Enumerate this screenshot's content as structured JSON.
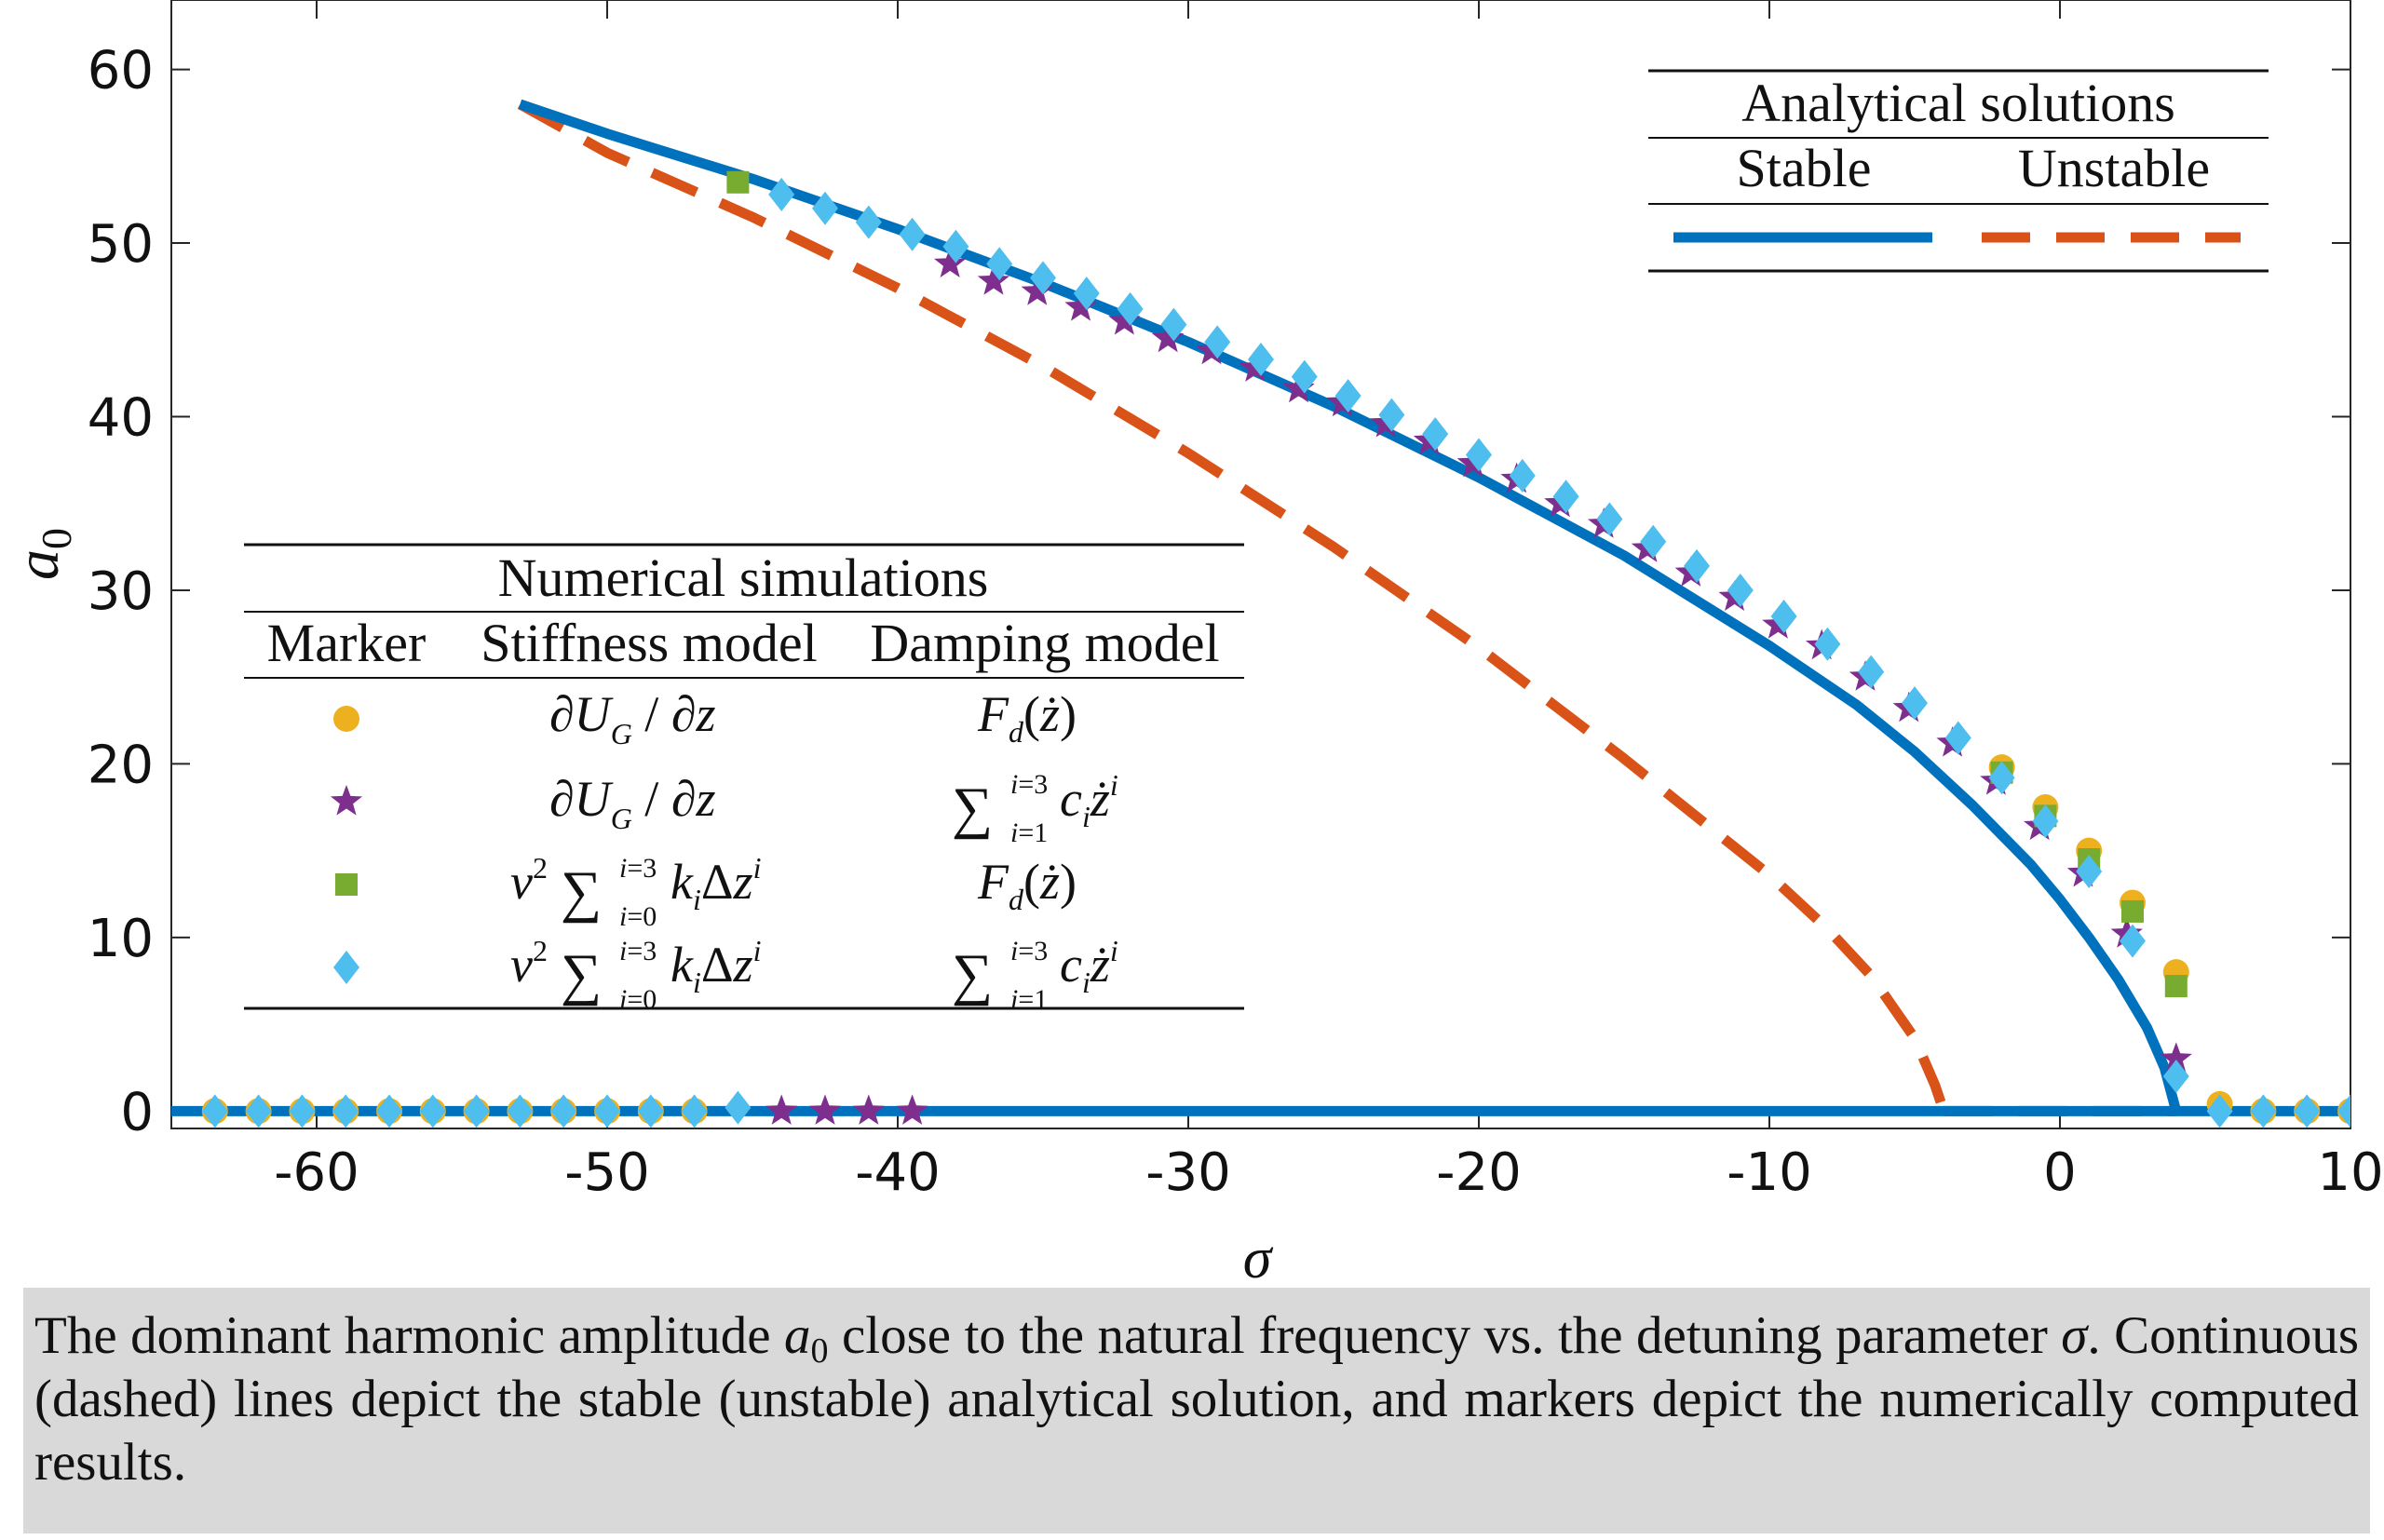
{
  "chart_data": {
    "type": "line",
    "xlabel": "σ",
    "ylabel": "a",
    "ylabel_sub": "0",
    "xlim": [
      -65,
      10
    ],
    "ylim": [
      -1,
      64
    ],
    "x_ticks": [
      -60,
      -50,
      -40,
      -30,
      -20,
      -10,
      0,
      10
    ],
    "y_ticks": [
      0,
      10,
      20,
      30,
      40,
      50,
      60
    ],
    "x_tick_labels": [
      "-60",
      "-50",
      "-40",
      "-30",
      "-20",
      "-10",
      "0",
      "10"
    ],
    "y_tick_labels": [
      "0",
      "10",
      "20",
      "30",
      "40",
      "50",
      "60"
    ],
    "grid": false,
    "series": [
      {
        "name": "Stable",
        "style": "solid",
        "color": "#0072bd",
        "segments": [
          [
            [
              -53,
              58
            ],
            [
              -50,
              56.3
            ],
            [
              -45,
              53.7
            ],
            [
              -40,
              50.8
            ],
            [
              -35,
              47.7
            ],
            [
              -30,
              44.3
            ],
            [
              -25,
              40.6
            ],
            [
              -20,
              36.5
            ],
            [
              -15,
              32.0
            ],
            [
              -10,
              26.8
            ],
            [
              -7,
              23.4
            ],
            [
              -5,
              20.7
            ],
            [
              -3,
              17.6
            ],
            [
              -1,
              14.2
            ],
            [
              0,
              12.2
            ],
            [
              1,
              10.0
            ],
            [
              2,
              7.6
            ],
            [
              3,
              4.8
            ],
            [
              3.6,
              2.5
            ],
            [
              4.0,
              0
            ]
          ],
          [
            [
              -65,
              0
            ],
            [
              10,
              0
            ]
          ]
        ]
      },
      {
        "name": "Unstable",
        "style": "dashed",
        "color": "#d95319",
        "segments": [
          [
            [
              -53,
              58
            ],
            [
              -50,
              55.2
            ],
            [
              -45,
              51.5
            ],
            [
              -40,
              47.4
            ],
            [
              -35,
              42.9
            ],
            [
              -30,
              37.9
            ],
            [
              -25,
              32.5
            ],
            [
              -20,
              26.7
            ],
            [
              -15,
              20.3
            ],
            [
              -10,
              13.6
            ],
            [
              -8,
              10.5
            ],
            [
              -6.5,
              7.8
            ],
            [
              -5,
              4.2
            ],
            [
              -4.3,
              1.5
            ],
            [
              -4,
              0
            ]
          ],
          [
            [
              -4,
              0
            ],
            [
              4.0,
              0
            ]
          ]
        ]
      }
    ],
    "marker_series": [
      {
        "marker": "circle",
        "color": "#edb120",
        "stiffness_model": "∂U_G / ∂z",
        "damping_model": "F_d(ż)",
        "points": [
          [
            -2,
            19.8
          ],
          [
            -0.5,
            17.5
          ],
          [
            1,
            15.0
          ],
          [
            2.5,
            12.0
          ],
          [
            4,
            8.0
          ],
          [
            5.5,
            0.4
          ],
          [
            -63.5,
            0
          ],
          [
            -62,
            0
          ],
          [
            -60.5,
            0
          ],
          [
            -59,
            0
          ],
          [
            -57.5,
            0
          ],
          [
            -56,
            0
          ],
          [
            -54.5,
            0
          ],
          [
            -53,
            0
          ],
          [
            -51.5,
            0
          ],
          [
            -50,
            0
          ],
          [
            -48.5,
            0
          ],
          [
            -47,
            0
          ],
          [
            7,
            0
          ],
          [
            8.5,
            0
          ],
          [
            10,
            0
          ]
        ]
      },
      {
        "marker": "star",
        "color": "#7e2f8e",
        "stiffness_model": "∂U_G / ∂z",
        "damping_model": "Σ_{i=1}^{i=3} c_i ż^i",
        "points": [
          [
            -38.2,
            48.8
          ],
          [
            -36.7,
            47.8
          ],
          [
            -35.2,
            47.2
          ],
          [
            -33.7,
            46.3
          ],
          [
            -32.2,
            45.5
          ],
          [
            -30.7,
            44.5
          ],
          [
            -29.2,
            43.8
          ],
          [
            -27.7,
            42.8
          ],
          [
            -26.2,
            41.6
          ],
          [
            -24.7,
            40.8
          ],
          [
            -23.2,
            39.6
          ],
          [
            -21.7,
            38.6
          ],
          [
            -20.2,
            37.3
          ],
          [
            -18.7,
            36.4
          ],
          [
            -17.2,
            35.0
          ],
          [
            -15.7,
            33.8
          ],
          [
            -14.2,
            32.4
          ],
          [
            -12.7,
            31.0
          ],
          [
            -11.2,
            29.6
          ],
          [
            -9.7,
            28.0
          ],
          [
            -8.2,
            26.8
          ],
          [
            -6.7,
            25.0
          ],
          [
            -5.2,
            23.2
          ],
          [
            -3.7,
            21.2
          ],
          [
            -2.2,
            19.0
          ],
          [
            -0.7,
            16.4
          ],
          [
            0.8,
            13.7
          ],
          [
            2.3,
            10.2
          ],
          [
            4.0,
            3.0
          ],
          [
            -44,
            0
          ],
          [
            -42.5,
            0
          ],
          [
            -41,
            0
          ],
          [
            -39.5,
            0
          ]
        ]
      },
      {
        "marker": "square",
        "color": "#77ac30",
        "stiffness_model": "v² Σ_{i=0}^{i=3} k_i Δz^i",
        "damping_model": "F_d(ż)",
        "points": [
          [
            -45.5,
            53.5
          ],
          [
            -2,
            19.5
          ],
          [
            -0.5,
            17.0
          ],
          [
            1,
            14.5
          ],
          [
            2.5,
            11.5
          ],
          [
            4,
            7.2
          ]
        ]
      },
      {
        "marker": "diamond",
        "color": "#4dbeee",
        "stiffness_model": "v² Σ_{i=0}^{i=3} k_i Δz^i",
        "damping_model": "Σ_{i=1}^{i=3} c_i ż^i",
        "points": [
          [
            -44,
            52.8
          ],
          [
            -42.5,
            52.0
          ],
          [
            -41,
            51.2
          ],
          [
            -39.5,
            50.5
          ],
          [
            -38,
            49.8
          ],
          [
            -36.5,
            48.8
          ],
          [
            -35,
            48.0
          ],
          [
            -33.5,
            47.1
          ],
          [
            -32,
            46.2
          ],
          [
            -30.5,
            45.3
          ],
          [
            -29,
            44.3
          ],
          [
            -27.5,
            43.3
          ],
          [
            -26,
            42.3
          ],
          [
            -24.5,
            41.2
          ],
          [
            -23,
            40.1
          ],
          [
            -21.5,
            39.0
          ],
          [
            -20,
            37.8
          ],
          [
            -18.5,
            36.6
          ],
          [
            -17,
            35.4
          ],
          [
            -15.5,
            34.1
          ],
          [
            -14,
            32.8
          ],
          [
            -12.5,
            31.4
          ],
          [
            -11,
            30.0
          ],
          [
            -9.5,
            28.5
          ],
          [
            -8,
            26.9
          ],
          [
            -6.5,
            25.3
          ],
          [
            -5,
            23.5
          ],
          [
            -3.5,
            21.5
          ],
          [
            -2,
            19.2
          ],
          [
            -0.5,
            16.7
          ],
          [
            1,
            13.8
          ],
          [
            2.5,
            9.8
          ],
          [
            4.0,
            2.0
          ],
          [
            -63.5,
            0
          ],
          [
            -62,
            0
          ],
          [
            -60.5,
            0
          ],
          [
            -59,
            0
          ],
          [
            -57.5,
            0
          ],
          [
            -56,
            0
          ],
          [
            -54.5,
            0
          ],
          [
            -53,
            0
          ],
          [
            -51.5,
            0
          ],
          [
            -50,
            0
          ],
          [
            -48.5,
            0
          ],
          [
            -47,
            0
          ],
          [
            -45.5,
            0.2
          ],
          [
            5.5,
            0
          ],
          [
            7,
            0
          ],
          [
            8.5,
            0
          ],
          [
            10,
            0
          ]
        ]
      }
    ]
  },
  "legend_analytical": {
    "title": "Analytical solutions",
    "stable_label": "Stable",
    "unstable_label": "Unstable",
    "placement": "top-right"
  },
  "legend_numerical": {
    "title": "Numerical simulations",
    "col_marker": "Marker",
    "col_stiffness": "Stiffness model",
    "col_damping": "Damping model",
    "placement": "center-left"
  },
  "caption": {
    "part1": "The dominant harmonic amplitude ",
    "a": "a",
    "a_sub": "0",
    "part2": " close to the natural frequency vs. the detuning parameter ",
    "sigma": "σ",
    "part3": ". Continuous (dashed) lines depict the stable (unstable) analytical solution, and markers depict the numerically computed results."
  }
}
